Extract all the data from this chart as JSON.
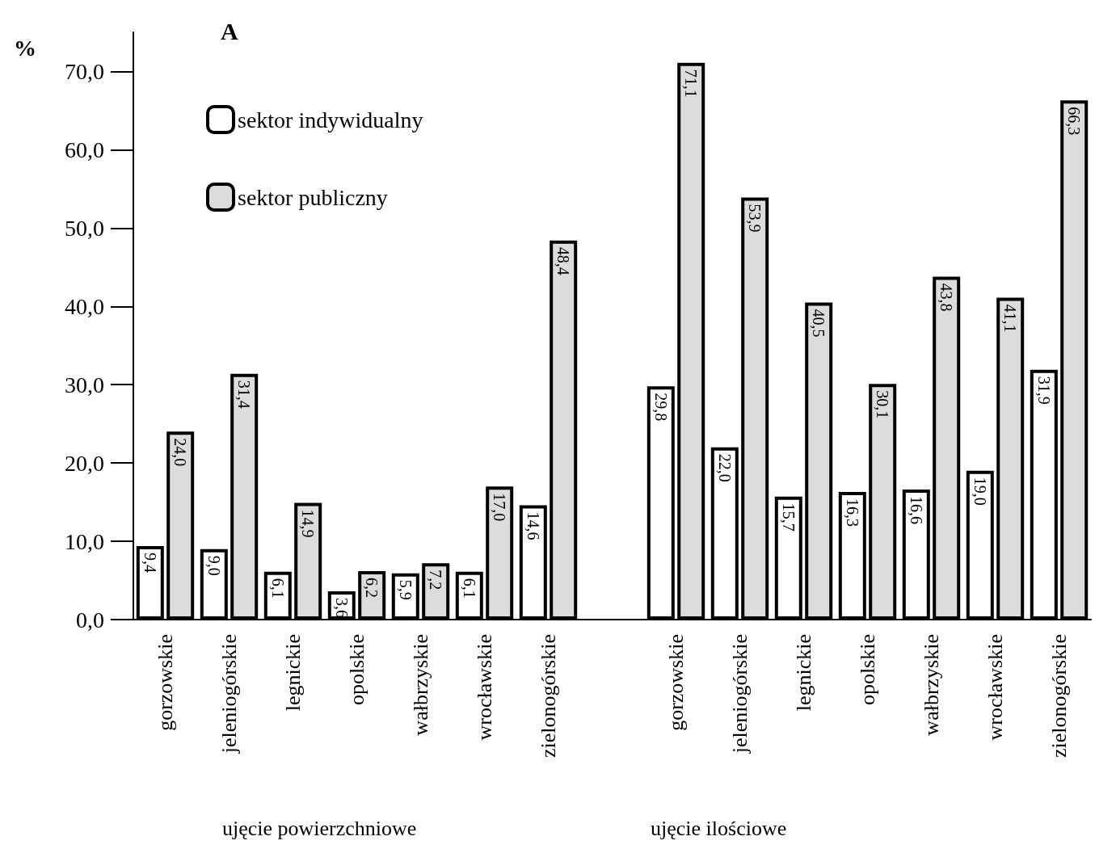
{
  "chart_data": {
    "type": "bar",
    "title": "A",
    "ylabel": "%",
    "categories": [
      "gorzowskie",
      "jeleniogórskie",
      "legnickie",
      "opolskie",
      "wałbrzyskie",
      "wrocławskie",
      "zielonogórskie",
      null,
      "gorzowskie",
      "jeleniogórskie",
      "legnickie",
      "opolskie",
      "wałbrzyskie",
      "wrocławskie",
      "zielonogórskie"
    ],
    "series": [
      {
        "name": "sektor indywidualny",
        "color": "#ffffff",
        "values": [
          9.4,
          9.0,
          6.1,
          3.6,
          5.9,
          6.1,
          14.6,
          null,
          29.8,
          22.0,
          15.7,
          16.3,
          16.6,
          19.0,
          31.9
        ],
        "value_labels": [
          "9,4",
          "9,0",
          "6,1",
          "3,6",
          "5,9",
          "6,1",
          "14,6",
          null,
          "29,8",
          "22,0",
          "15,7",
          "16,3",
          "16,6",
          "19,0",
          "31,9"
        ]
      },
      {
        "name": "sektor publiczny",
        "color": "#dcdcdc",
        "values": [
          24.0,
          31.4,
          14.9,
          6.2,
          7.2,
          17.0,
          48.4,
          null,
          71.1,
          53.9,
          40.5,
          30.1,
          43.8,
          41.1,
          66.3
        ],
        "value_labels": [
          "24,0",
          "31,4",
          "14,9",
          "6,2",
          "7,2",
          "17,0",
          "48,4",
          null,
          "71,1",
          "53,9",
          "40,5",
          "30,1",
          "43,8",
          "41,1",
          "66,3"
        ]
      }
    ],
    "ylim": [
      0,
      75
    ],
    "yticks": [
      {
        "value": 0,
        "label": "0,0"
      },
      {
        "value": 10,
        "label": "10,0"
      },
      {
        "value": 20,
        "label": "20,0"
      },
      {
        "value": 30,
        "label": "30,0"
      },
      {
        "value": 40,
        "label": "40,0"
      },
      {
        "value": 50,
        "label": "50,0"
      },
      {
        "value": 60,
        "label": "60,0"
      },
      {
        "value": 70,
        "label": "70,0"
      }
    ],
    "grid": false,
    "legend": "top left",
    "annotations": [
      "ujęcie powierzchniowe",
      "ujęcie ilościowe"
    ]
  }
}
